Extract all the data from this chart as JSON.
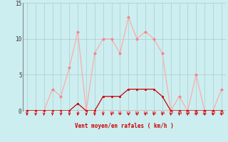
{
  "hours": [
    0,
    1,
    2,
    3,
    4,
    5,
    6,
    7,
    8,
    9,
    10,
    11,
    12,
    13,
    14,
    15,
    16,
    17,
    18,
    19,
    20,
    21,
    22,
    23
  ],
  "rafales": [
    0,
    0,
    0,
    3,
    2,
    6,
    11,
    0,
    8,
    10,
    10,
    8,
    13,
    10,
    11,
    10,
    8,
    0,
    2,
    0,
    5,
    0,
    0,
    3
  ],
  "moyen": [
    0,
    0,
    0,
    0,
    0,
    0,
    1,
    0,
    0,
    2,
    2,
    2,
    3,
    3,
    3,
    3,
    2,
    0,
    0,
    0,
    0,
    0,
    0,
    0
  ],
  "bg_color": "#cceef0",
  "grid_color": "#aacccc",
  "line_color_rafales": "#ffaaaa",
  "line_color_moyen": "#cc0000",
  "marker_color_rafales": "#ee8888",
  "marker_color_moyen": "#cc0000",
  "arrow_color": "#cc0000",
  "xlabel": "Vent moyen/en rafales ( km/h )",
  "ylim": [
    0,
    15
  ],
  "xlim": [
    -0.5,
    23.5
  ],
  "yticks": [
    0,
    5,
    10,
    15
  ],
  "xticks": [
    0,
    1,
    2,
    3,
    4,
    5,
    6,
    7,
    8,
    9,
    10,
    11,
    12,
    13,
    14,
    15,
    16,
    17,
    18,
    19,
    20,
    21,
    22,
    23
  ]
}
